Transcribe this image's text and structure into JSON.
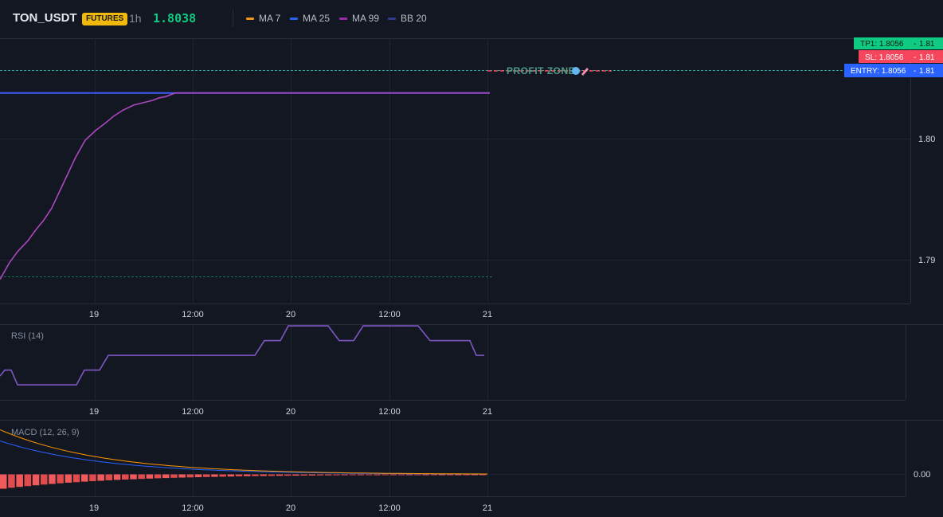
{
  "header": {
    "symbol": "TON_USDT",
    "badge": "FUTURES",
    "interval": "1h",
    "last_price": "1.8038",
    "indicators": [
      {
        "name": "MA 7",
        "color": "#f7931a"
      },
      {
        "name": "MA 25",
        "color": "#2962ff"
      },
      {
        "name": "MA 99",
        "color": "#9c27b0"
      },
      {
        "name": "BB 20",
        "color": "#2f3b8f"
      }
    ]
  },
  "price_labels": {
    "tp": {
      "label": "TP1: 1.8056",
      "price": "1.81",
      "color": "#0ecb81"
    },
    "sl": {
      "label": "SL: 1.8056",
      "price": "1.81",
      "color": "#f6465d"
    },
    "entry": {
      "label": "ENTRY: 1.8056",
      "price": "1.81",
      "color": "#2962ff"
    }
  },
  "annotation": {
    "text": "PROFIT ZONE",
    "icon": "rocket-icon"
  },
  "panes": {
    "rsi": {
      "title": "RSI (14)"
    },
    "macd": {
      "title": "MACD (12, 26, 9)"
    }
  },
  "chart_data": [
    {
      "type": "line",
      "pane": "price",
      "x_ticks": [
        "19",
        "12:00",
        "20",
        "12:00",
        "21"
      ],
      "y_ticks": [
        "1.80",
        "1.79"
      ],
      "ylim": [
        1.7765,
        1.8098
      ],
      "price_lines": [
        {
          "name": "TP1",
          "y": 1.8056
        },
        {
          "name": "SL",
          "y": 1.8056
        },
        {
          "name": "ENTRY",
          "y": 1.8056
        },
        {
          "name": "lower",
          "y": 1.7887
        }
      ],
      "series": [
        {
          "name": "MA 25",
          "color": "#3d5afe",
          "x": [
            0,
            615
          ],
          "y": [
            1.8038,
            1.8038
          ]
        },
        {
          "name": "MA 99",
          "color": "#ab47bc",
          "x": [
            0,
            12,
            22,
            35,
            45,
            55,
            65,
            75,
            85,
            95,
            107,
            120,
            132,
            143,
            155,
            168,
            180,
            192,
            200,
            208,
            220,
            615
          ],
          "y": [
            1.7884,
            1.7898,
            1.7907,
            1.7916,
            1.7925,
            1.7933,
            1.7943,
            1.7957,
            1.7971,
            1.7985,
            1.7999,
            1.8007,
            1.8013,
            1.8019,
            1.8024,
            1.8028,
            1.803,
            1.8032,
            1.8034,
            1.8035,
            1.8038,
            1.8038
          ]
        }
      ]
    },
    {
      "type": "line",
      "pane": "rsi",
      "title": "RSI (14)",
      "x_ticks": [
        "19",
        "12:00",
        "20",
        "12:00",
        "21"
      ],
      "series": [
        {
          "name": "RSI",
          "color": "#7e57c2",
          "x": [
            0,
            6,
            14,
            22,
            96,
            106,
            125,
            136,
            320,
            332,
            352,
            362,
            412,
            426,
            444,
            456,
            525,
            540,
            590,
            598,
            608
          ],
          "y": [
            43,
            47,
            47,
            37,
            37,
            47,
            47,
            57,
            57,
            67,
            67,
            77,
            77,
            67,
            67,
            77,
            77,
            67,
            67,
            57,
            57
          ]
        }
      ]
    },
    {
      "type": "line",
      "pane": "macd",
      "title": "MACD (12, 26, 9)",
      "x_ticks": [
        "19",
        "12:00",
        "20",
        "12:00",
        "21"
      ],
      "y_ticks": [
        "0.00"
      ],
      "series": [
        {
          "name": "MACD",
          "color": "#ff9800",
          "shape": "decay",
          "start": 0.0056,
          "end": 0
        },
        {
          "name": "Signal",
          "color": "#2962ff",
          "shape": "decay",
          "start": 0.0042,
          "end": 0
        },
        {
          "name": "Histogram",
          "color": "#f6465d",
          "shape": "bars",
          "start": -0.0018,
          "end": 0
        }
      ]
    }
  ]
}
